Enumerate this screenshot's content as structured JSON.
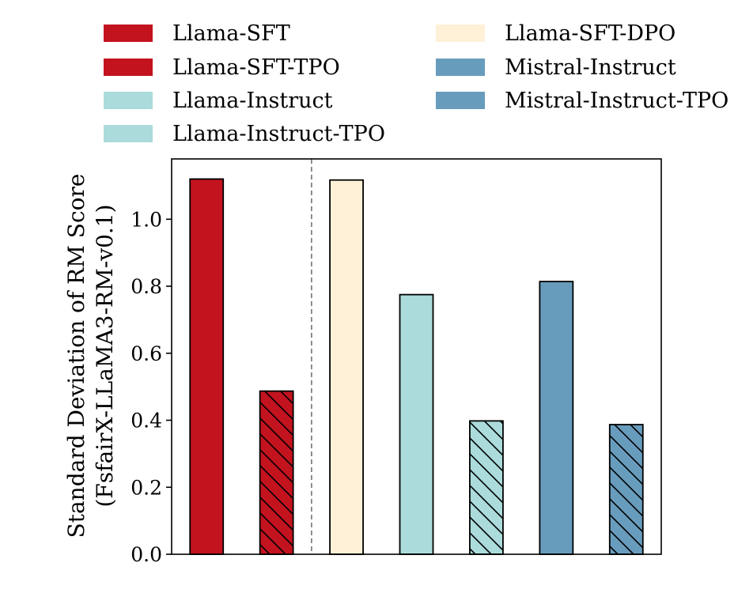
{
  "chart_data": {
    "type": "bar",
    "title": "",
    "xlabel": "",
    "ylabel": [
      "Standard Deviation of RM Score",
      "(FsfairX-LLaMA3-RM-v0.1)"
    ],
    "ylim": [
      0,
      1.18
    ],
    "yticks": [
      {
        "value": 0.0,
        "label": "0.0"
      },
      {
        "value": 0.2,
        "label": "0.2"
      },
      {
        "value": 0.4,
        "label": "0.4"
      },
      {
        "value": 0.6,
        "label": "0.6"
      },
      {
        "value": 0.8,
        "label": "0.8"
      },
      {
        "value": 1.0,
        "label": "1.0"
      }
    ],
    "legend_position": "top",
    "separator_after_index": 1,
    "series": [
      {
        "name": "Llama-SFT",
        "value": 1.12,
        "color": "#c3131f",
        "hatch": false
      },
      {
        "name": "Llama-SFT-TPO",
        "value": 0.487,
        "color": "#c3131f",
        "hatch": true
      },
      {
        "name": "Llama-SFT-DPO",
        "value": 1.117,
        "color": "#fef1d7",
        "hatch": false
      },
      {
        "name": "Llama-Instruct",
        "value": 0.775,
        "color": "#abdbdb",
        "hatch": false
      },
      {
        "name": "Llama-Instruct-TPO",
        "value": 0.398,
        "color": "#abdbdb",
        "hatch": true
      },
      {
        "name": "Mistral-Instruct",
        "value": 0.814,
        "color": "#689cbd",
        "hatch": false
      },
      {
        "name": "Mistral-Instruct-TPO",
        "value": 0.387,
        "color": "#689cbd",
        "hatch": true
      }
    ],
    "legend_order": [
      "Llama-SFT",
      "Llama-SFT-TPO",
      "Llama-Instruct",
      "Llama-Instruct-TPO",
      "Llama-SFT-DPO",
      "Mistral-Instruct",
      "Mistral-Instruct-TPO"
    ]
  }
}
